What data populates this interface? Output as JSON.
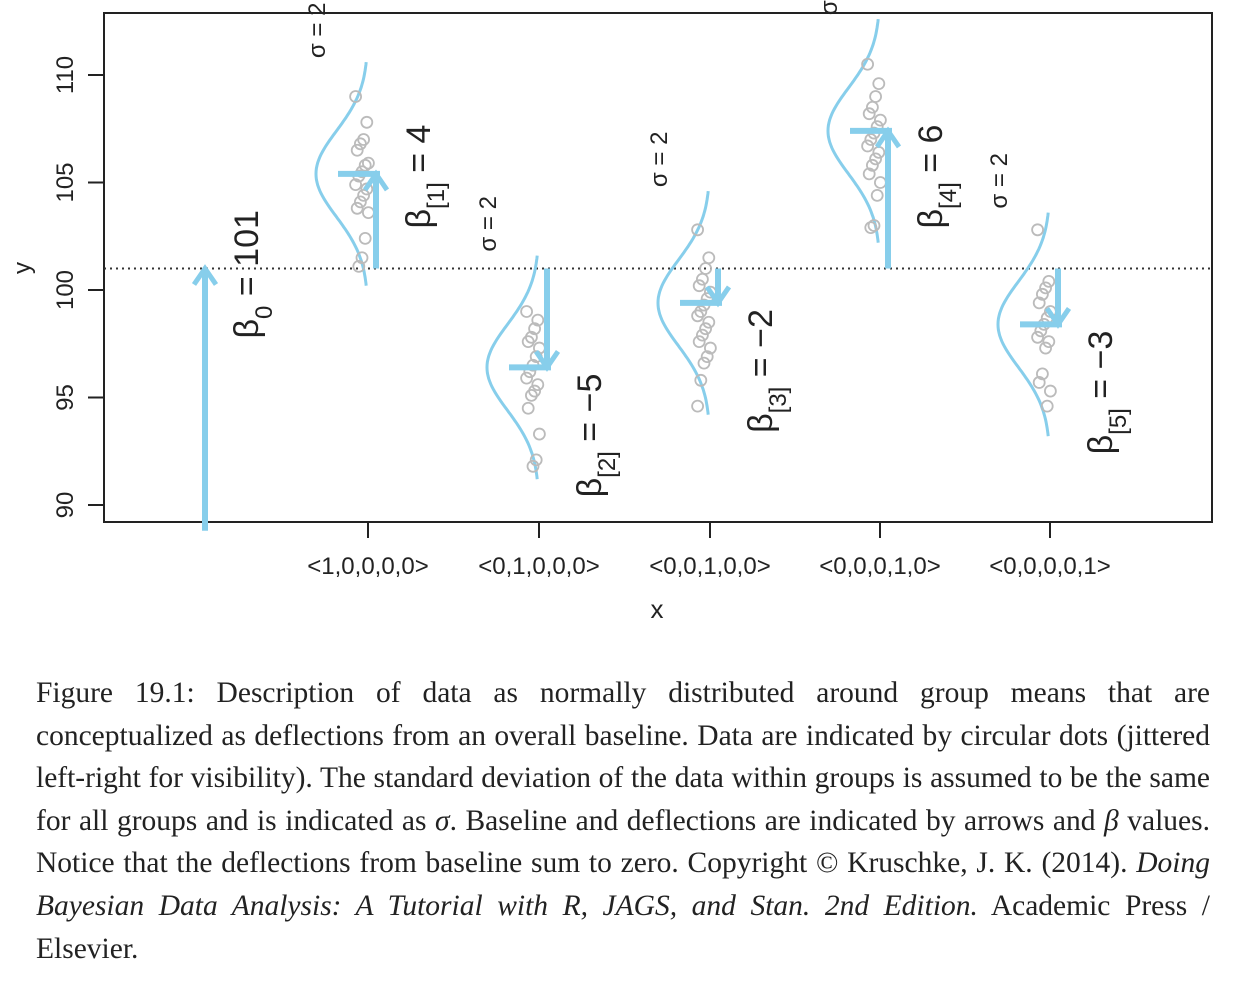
{
  "chart_data": {
    "type": "scatter",
    "xlabel": "x",
    "ylabel": "y",
    "ylim": [
      88.4,
      110.8
    ],
    "yticks": [
      90,
      95,
      100,
      105,
      110
    ],
    "categories": [
      "<1,0,0,0,0>",
      "<0,1,0,0,0>",
      "<0,0,1,0,0>",
      "<0,0,0,1,0>",
      "<0,0,0,0,1>"
    ],
    "baseline": {
      "value": 101,
      "symbol": "β",
      "subscript": "0",
      "eq": " = ",
      "text": "101"
    },
    "sigma": 2,
    "sigma_label": "σ = 2",
    "groups": [
      {
        "deflection": 4,
        "mean": 105.4,
        "beta_sub": "[1]",
        "beta_text": "4",
        "points": [
          109,
          107.8,
          107,
          106.8,
          106.5,
          105.9,
          105.8,
          105.5,
          105.3,
          104.9,
          104.7,
          104.4,
          104.1,
          103.8,
          103.6,
          102.4,
          101.5,
          101.1
        ]
      },
      {
        "deflection": -5,
        "mean": 96.4,
        "beta_sub": "[2]",
        "beta_text": "−5",
        "points": [
          99,
          98.6,
          98.2,
          97.8,
          97.6,
          97.3,
          96.9,
          96.5,
          96.2,
          95.9,
          95.6,
          95.3,
          95.1,
          94.5,
          93.3,
          92.1,
          91.8
        ]
      },
      {
        "deflection": -2,
        "mean": 99.4,
        "beta_sub": "[3]",
        "beta_text": "−2",
        "points": [
          102.8,
          101.5,
          101,
          100.5,
          100.2,
          99.9,
          99.6,
          99.3,
          99,
          98.8,
          98.5,
          98.2,
          97.9,
          97.6,
          97.3,
          96.9,
          96.6,
          95.8,
          94.6
        ]
      },
      {
        "deflection": 6,
        "mean": 107.4,
        "beta_sub": "[4]",
        "beta_text": "6",
        "points": [
          110.5,
          109.6,
          109,
          108.5,
          108.2,
          107.9,
          107.6,
          107.3,
          107,
          106.7,
          106.4,
          106.1,
          105.8,
          105.4,
          105,
          104.4,
          103,
          102.9
        ]
      },
      {
        "deflection": -3,
        "mean": 98.4,
        "beta_sub": "[5]",
        "beta_text": "−3",
        "points": [
          102.8,
          100.4,
          100.1,
          99.8,
          99.4,
          99,
          98.7,
          98.4,
          98.1,
          97.8,
          97.6,
          97.3,
          96.1,
          95.7,
          95.3,
          94.6
        ]
      }
    ]
  },
  "caption": {
    "lead": "Figure 19.1: Description of data as normally distributed around group means that are conceptualized as deflections from an overall baseline. Data are indicated by circular dots (jittered left-right for visibility). The standard deviation of the data within groups is assumed to be the same for all groups and is indicated as ",
    "sigma_symbol": "σ",
    "mid1": ". Baseline and deflections are indicated by arrows and ",
    "beta_symbol": "β",
    "mid2": " values. Notice that the deflections from baseline sum to zero.    Copyright © Kruschke, J. K. (2014). ",
    "book_title": "Doing Bayesian Data Analysis: A Tutorial with R, JAGS, and Stan. 2nd Edition.",
    "publisher": " Academic Press / Elsevier."
  },
  "colors": {
    "accent": "#87CEEB",
    "points": "#bbbbbb",
    "axis": "#222222"
  }
}
